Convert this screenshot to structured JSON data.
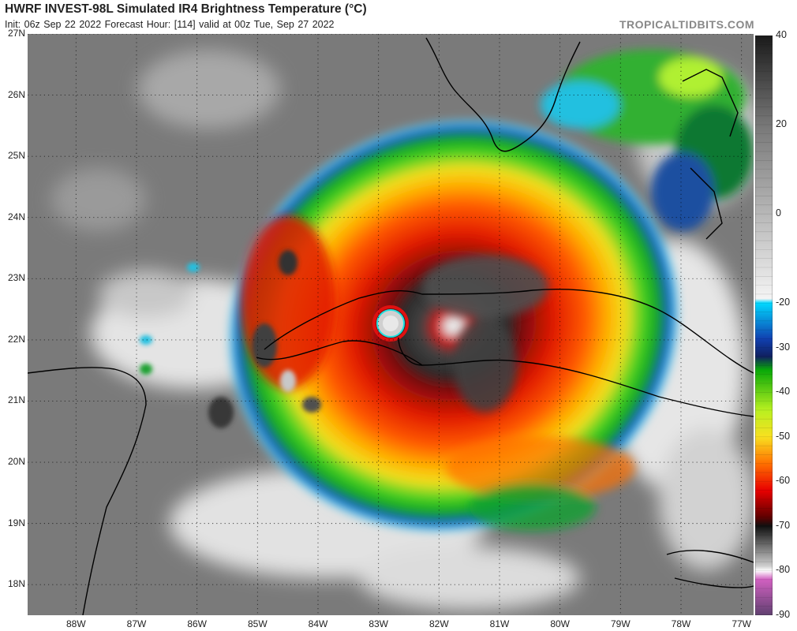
{
  "header": {
    "title": "HWRF INVEST-98L Simulated IR4 Brightness Temperature (°C)",
    "subtitle": "Init: 06z Sep 22 2022   Forecast Hour: [114]   valid at 00z Tue, Sep 27 2022",
    "brand": "TROPICALTIDBITS.COM"
  },
  "map": {
    "lat_labels": [
      "27N",
      "26N",
      "25N",
      "24N",
      "23N",
      "22N",
      "21N",
      "20N",
      "19N",
      "18N"
    ],
    "lon_labels": [
      "88W",
      "87W",
      "86W",
      "85W",
      "84W",
      "83W",
      "82W",
      "81W",
      "80W",
      "79W",
      "78W",
      "77W"
    ],
    "lat_range": [
      17.5,
      27
    ],
    "lon_range": [
      -88.8,
      -76.8
    ],
    "grid": "dotted",
    "storm_center": {
      "lat": 22.3,
      "lon": -82.6
    }
  },
  "colorbar": {
    "labels": [
      "40",
      "20",
      "0",
      "-20",
      "-30",
      "-40",
      "-50",
      "-60",
      "-70",
      "-80",
      "-90"
    ],
    "range": [
      -90,
      40
    ],
    "stops": [
      {
        "t": 40,
        "color": "#1a1a1a"
      },
      {
        "t": 20,
        "color": "#777777"
      },
      {
        "t": -19,
        "color": "#f4f4f4"
      },
      {
        "t": -20,
        "color": "#00d8ff"
      },
      {
        "t": -28,
        "color": "#1040b0"
      },
      {
        "t": -32,
        "color": "#102060"
      },
      {
        "t": -35,
        "color": "#08a808"
      },
      {
        "t": -44,
        "color": "#b8f020"
      },
      {
        "t": -50,
        "color": "#f8e020"
      },
      {
        "t": -56,
        "color": "#ff7000"
      },
      {
        "t": -62,
        "color": "#e80000"
      },
      {
        "t": -68,
        "color": "#600000"
      },
      {
        "t": -70,
        "color": "#101010"
      },
      {
        "t": -79,
        "color": "#cfcfcf"
      },
      {
        "t": -80,
        "color": "#ffffff"
      },
      {
        "t": -82,
        "color": "#d060c0"
      },
      {
        "t": -90,
        "color": "#604070"
      }
    ]
  },
  "colors": {
    "background_gray": "#7a7a7a",
    "cloud_white": "#e8e8e8",
    "eye_wall_red": "#e82000",
    "coastline": "#000000"
  }
}
